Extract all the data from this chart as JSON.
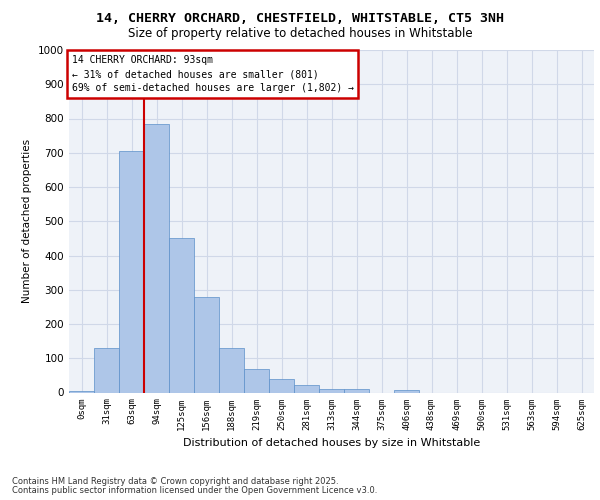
{
  "title_line1": "14, CHERRY ORCHARD, CHESTFIELD, WHITSTABLE, CT5 3NH",
  "title_line2": "Size of property relative to detached houses in Whitstable",
  "xlabel": "Distribution of detached houses by size in Whitstable",
  "ylabel": "Number of detached properties",
  "categories": [
    "0sqm",
    "31sqm",
    "63sqm",
    "94sqm",
    "125sqm",
    "156sqm",
    "188sqm",
    "219sqm",
    "250sqm",
    "281sqm",
    "313sqm",
    "344sqm",
    "375sqm",
    "406sqm",
    "438sqm",
    "469sqm",
    "500sqm",
    "531sqm",
    "563sqm",
    "594sqm",
    "625sqm"
  ],
  "values": [
    5,
    130,
    705,
    785,
    450,
    280,
    130,
    70,
    40,
    22,
    10,
    9,
    0,
    8,
    0,
    0,
    0,
    0,
    0,
    0,
    0
  ],
  "bar_color": "#aec6e8",
  "bar_edge_color": "#5b8fc9",
  "grid_color": "#d0d8e8",
  "bg_color": "#eef2f8",
  "vline_x_index": 3,
  "vline_color": "#cc0000",
  "annotation_text": "14 CHERRY ORCHARD: 93sqm\n← 31% of detached houses are smaller (801)\n69% of semi-detached houses are larger (1,802) →",
  "annotation_box_color": "#cc0000",
  "footer_line1": "Contains HM Land Registry data © Crown copyright and database right 2025.",
  "footer_line2": "Contains public sector information licensed under the Open Government Licence v3.0.",
  "ylim": [
    0,
    1000
  ],
  "yticks": [
    0,
    100,
    200,
    300,
    400,
    500,
    600,
    700,
    800,
    900,
    1000
  ]
}
